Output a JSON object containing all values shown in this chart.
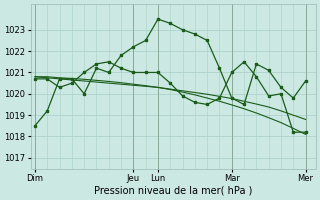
{
  "xlabel": "Pression niveau de la mer( hPa )",
  "bg_color": "#cce8e2",
  "grid_color": "#a8cfc7",
  "line_color": "#1a5c1a",
  "ylim": [
    1016.5,
    1024.2
  ],
  "yticks": [
    1017,
    1018,
    1019,
    1020,
    1021,
    1022,
    1023
  ],
  "day_labels": [
    "Dim",
    "Jeu",
    "Lun",
    "Mar",
    "Mer"
  ],
  "day_positions": [
    0,
    96,
    120,
    192,
    264
  ],
  "xlim": [
    -4,
    274
  ],
  "x_hourly": [
    0,
    12,
    24,
    36,
    48,
    60,
    72,
    84,
    96,
    108,
    120,
    132,
    144,
    156,
    168,
    180,
    192,
    204,
    216,
    228,
    240,
    252,
    264
  ],
  "y_main": [
    1018.5,
    1019.2,
    1020.7,
    1020.7,
    1020.0,
    1021.2,
    1021.0,
    1021.8,
    1022.2,
    1022.5,
    1023.5,
    1023.3,
    1023.0,
    1022.8,
    1022.5,
    1021.2,
    1019.8,
    1019.5,
    1021.4,
    1021.1,
    1020.3,
    1019.8,
    1020.6
  ],
  "y_main2": [
    1020.7,
    1020.7,
    1020.3,
    1020.5,
    1021.0,
    1021.4,
    1021.5,
    1021.2,
    1021.0,
    1021.0,
    1021.0,
    1020.5,
    1019.9,
    1019.6,
    1019.5,
    1019.8,
    1021.0,
    1021.5,
    1020.8,
    1019.9,
    1020.0,
    1018.2,
    1018.2
  ],
  "x_smooth1": [
    0,
    12,
    24,
    36,
    48,
    60,
    72,
    84,
    96,
    108,
    120,
    132,
    144,
    156,
    168,
    180,
    192,
    204,
    216,
    228,
    240,
    252,
    264
  ],
  "y_smooth1": [
    1020.8,
    1020.75,
    1020.7,
    1020.65,
    1020.6,
    1020.55,
    1020.5,
    1020.45,
    1020.4,
    1020.35,
    1020.3,
    1020.22,
    1020.14,
    1020.06,
    1019.98,
    1019.88,
    1019.78,
    1019.65,
    1019.52,
    1019.38,
    1019.2,
    1019.0,
    1018.8
  ],
  "y_smooth2": [
    1020.8,
    1020.8,
    1020.75,
    1020.72,
    1020.68,
    1020.63,
    1020.58,
    1020.52,
    1020.45,
    1020.38,
    1020.3,
    1020.2,
    1020.08,
    1019.95,
    1019.8,
    1019.65,
    1019.48,
    1019.3,
    1019.1,
    1018.88,
    1018.65,
    1018.38,
    1018.1
  ]
}
